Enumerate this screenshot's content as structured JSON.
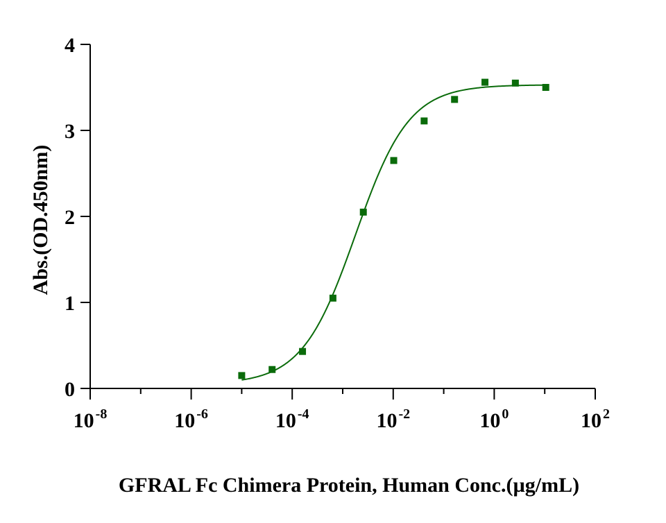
{
  "chart_data": {
    "type": "scatter",
    "title": "",
    "xlabel": "GFRAL Fc Chimera Protein, Human Conc.(µg/mL)",
    "ylabel": "Abs.(OD.450nm)",
    "x_scale": "log10",
    "xlim": [
      1e-08,
      100
    ],
    "ylim": [
      0,
      4
    ],
    "x_ticks": [
      {
        "base": "10",
        "exp": "-8",
        "value": 1e-08
      },
      {
        "base": "10",
        "exp": "-6",
        "value": 1e-06
      },
      {
        "base": "10",
        "exp": "-4",
        "value": 0.0001
      },
      {
        "base": "10",
        "exp": "-2",
        "value": 0.01
      },
      {
        "base": "10",
        "exp": "0",
        "value": 1
      },
      {
        "base": "10",
        "exp": "2",
        "value": 100
      }
    ],
    "y_ticks": [
      {
        "label": "0",
        "value": 0
      },
      {
        "label": "1",
        "value": 1
      },
      {
        "label": "2",
        "value": 2
      },
      {
        "label": "3",
        "value": 3
      },
      {
        "label": "4",
        "value": 4
      }
    ],
    "grid": false,
    "legend": "none",
    "color": "#0a6b0a",
    "marker": "square",
    "series": [
      {
        "x": [
          1e-05,
          4e-05,
          0.00016,
          0.00064,
          0.00256,
          0.01024,
          0.04096,
          0.16384,
          0.65536,
          2.62144,
          10.48576
        ],
        "y": [
          0.15,
          0.22,
          0.43,
          1.05,
          2.05,
          2.65,
          3.11,
          3.36,
          3.56,
          3.55,
          3.5
        ]
      }
    ],
    "fit": {
      "type": "4PL",
      "bottom": 0.05,
      "top": 3.53,
      "ec50": 0.0018,
      "hill": 0.82,
      "x_range": [
        1e-05,
        10.48576
      ]
    }
  }
}
